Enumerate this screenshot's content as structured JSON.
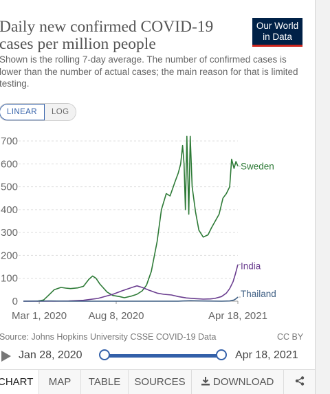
{
  "header": {
    "title": "Daily new confirmed COVID-19 cases per million people",
    "subtitle": "Shown is the rolling 7-day average. The number of confirmed cases is lower than the number of actual cases; the main reason for that is limited testing.",
    "logo_line1": "Our World",
    "logo_line2": "in Data"
  },
  "scale_toggle": {
    "linear": "LINEAR",
    "log": "LOG",
    "selected": "LINEAR"
  },
  "chart_data": {
    "type": "line",
    "y_tick_labels": [
      "0",
      "100",
      "200",
      "300",
      "400",
      "500",
      "600",
      "700"
    ],
    "x_tick_labels": [
      "Mar 1, 2020",
      "Aug 8, 2020",
      "Apr 18, 2021"
    ],
    "ylim": [
      0,
      700
    ],
    "xlim": [
      "2020-01-28",
      "2021-04-18"
    ],
    "grid": "horizontal dashed",
    "series": [
      {
        "name": "Sweden",
        "color": "#2d7a36",
        "points": [
          [
            "2020-02-25",
            0
          ],
          [
            "2020-03-10",
            5
          ],
          [
            "2020-03-20",
            25
          ],
          [
            "2020-04-01",
            50
          ],
          [
            "2020-04-15",
            60
          ],
          [
            "2020-04-25",
            57
          ],
          [
            "2020-05-05",
            55
          ],
          [
            "2020-05-20",
            58
          ],
          [
            "2020-06-01",
            65
          ],
          [
            "2020-06-12",
            95
          ],
          [
            "2020-06-20",
            110
          ],
          [
            "2020-06-27",
            100
          ],
          [
            "2020-07-05",
            75
          ],
          [
            "2020-07-20",
            40
          ],
          [
            "2020-08-01",
            25
          ],
          [
            "2020-08-15",
            20
          ],
          [
            "2020-08-25",
            15
          ],
          [
            "2020-09-08",
            22
          ],
          [
            "2020-09-20",
            30
          ],
          [
            "2020-10-01",
            45
          ],
          [
            "2020-10-10",
            70
          ],
          [
            "2020-10-20",
            130
          ],
          [
            "2020-11-01",
            260
          ],
          [
            "2020-11-10",
            400
          ],
          [
            "2020-11-20",
            470
          ],
          [
            "2020-11-28",
            460
          ],
          [
            "2020-12-08",
            520
          ],
          [
            "2020-12-15",
            560
          ],
          [
            "2020-12-20",
            600
          ],
          [
            "2020-12-24",
            680
          ],
          [
            "2020-12-27",
            600
          ],
          [
            "2020-12-30",
            400
          ],
          [
            "2021-01-02",
            720
          ],
          [
            "2021-01-06",
            380
          ],
          [
            "2021-01-09",
            720
          ],
          [
            "2021-01-13",
            500
          ],
          [
            "2021-01-20",
            390
          ],
          [
            "2021-01-27",
            310
          ],
          [
            "2021-02-05",
            280
          ],
          [
            "2021-02-15",
            290
          ],
          [
            "2021-02-22",
            320
          ],
          [
            "2021-03-02",
            350
          ],
          [
            "2021-03-10",
            380
          ],
          [
            "2021-03-18",
            450
          ],
          [
            "2021-03-25",
            470
          ],
          [
            "2021-04-01",
            500
          ],
          [
            "2021-04-05",
            620
          ],
          [
            "2021-04-10",
            580
          ],
          [
            "2021-04-14",
            610
          ],
          [
            "2021-04-18",
            590
          ]
        ]
      },
      {
        "name": "India",
        "color": "#6a3d8f",
        "points": [
          [
            "2020-01-28",
            0
          ],
          [
            "2020-04-01",
            0
          ],
          [
            "2020-05-01",
            1
          ],
          [
            "2020-06-01",
            4
          ],
          [
            "2020-07-01",
            12
          ],
          [
            "2020-08-01",
            30
          ],
          [
            "2020-08-20",
            45
          ],
          [
            "2020-09-10",
            60
          ],
          [
            "2020-09-20",
            67
          ],
          [
            "2020-10-01",
            60
          ],
          [
            "2020-10-15",
            48
          ],
          [
            "2020-11-01",
            35
          ],
          [
            "2020-11-15",
            30
          ],
          [
            "2020-12-01",
            27
          ],
          [
            "2020-12-15",
            20
          ],
          [
            "2021-01-01",
            14
          ],
          [
            "2021-01-20",
            11
          ],
          [
            "2021-02-05",
            9
          ],
          [
            "2021-02-20",
            10
          ],
          [
            "2021-03-01",
            12
          ],
          [
            "2021-03-15",
            20
          ],
          [
            "2021-03-25",
            35
          ],
          [
            "2021-04-01",
            55
          ],
          [
            "2021-04-08",
            85
          ],
          [
            "2021-04-13",
            120
          ],
          [
            "2021-04-18",
            160
          ]
        ]
      },
      {
        "name": "Thailand",
        "color": "#3f5f84",
        "points": [
          [
            "2020-01-28",
            0
          ],
          [
            "2020-03-25",
            1
          ],
          [
            "2020-05-01",
            0
          ],
          [
            "2020-12-15",
            0
          ],
          [
            "2020-12-25",
            1
          ],
          [
            "2021-01-10",
            2
          ],
          [
            "2021-02-01",
            1
          ],
          [
            "2021-03-15",
            0
          ],
          [
            "2021-04-01",
            1
          ],
          [
            "2021-04-10",
            5
          ],
          [
            "2021-04-15",
            12
          ],
          [
            "2021-04-18",
            18
          ]
        ]
      }
    ]
  },
  "footer": {
    "source": "Source: Johns Hopkins University CSSE COVID-19 Data",
    "license": "CC BY",
    "start_date": "Jan 28, 2020",
    "end_date": "Apr 18, 2021"
  },
  "tabs": [
    "CHART",
    "MAP",
    "TABLE",
    "SOURCES",
    "DOWNLOAD"
  ],
  "icons": {
    "download": "download-icon",
    "share": "share-icon",
    "play": "play-icon"
  }
}
